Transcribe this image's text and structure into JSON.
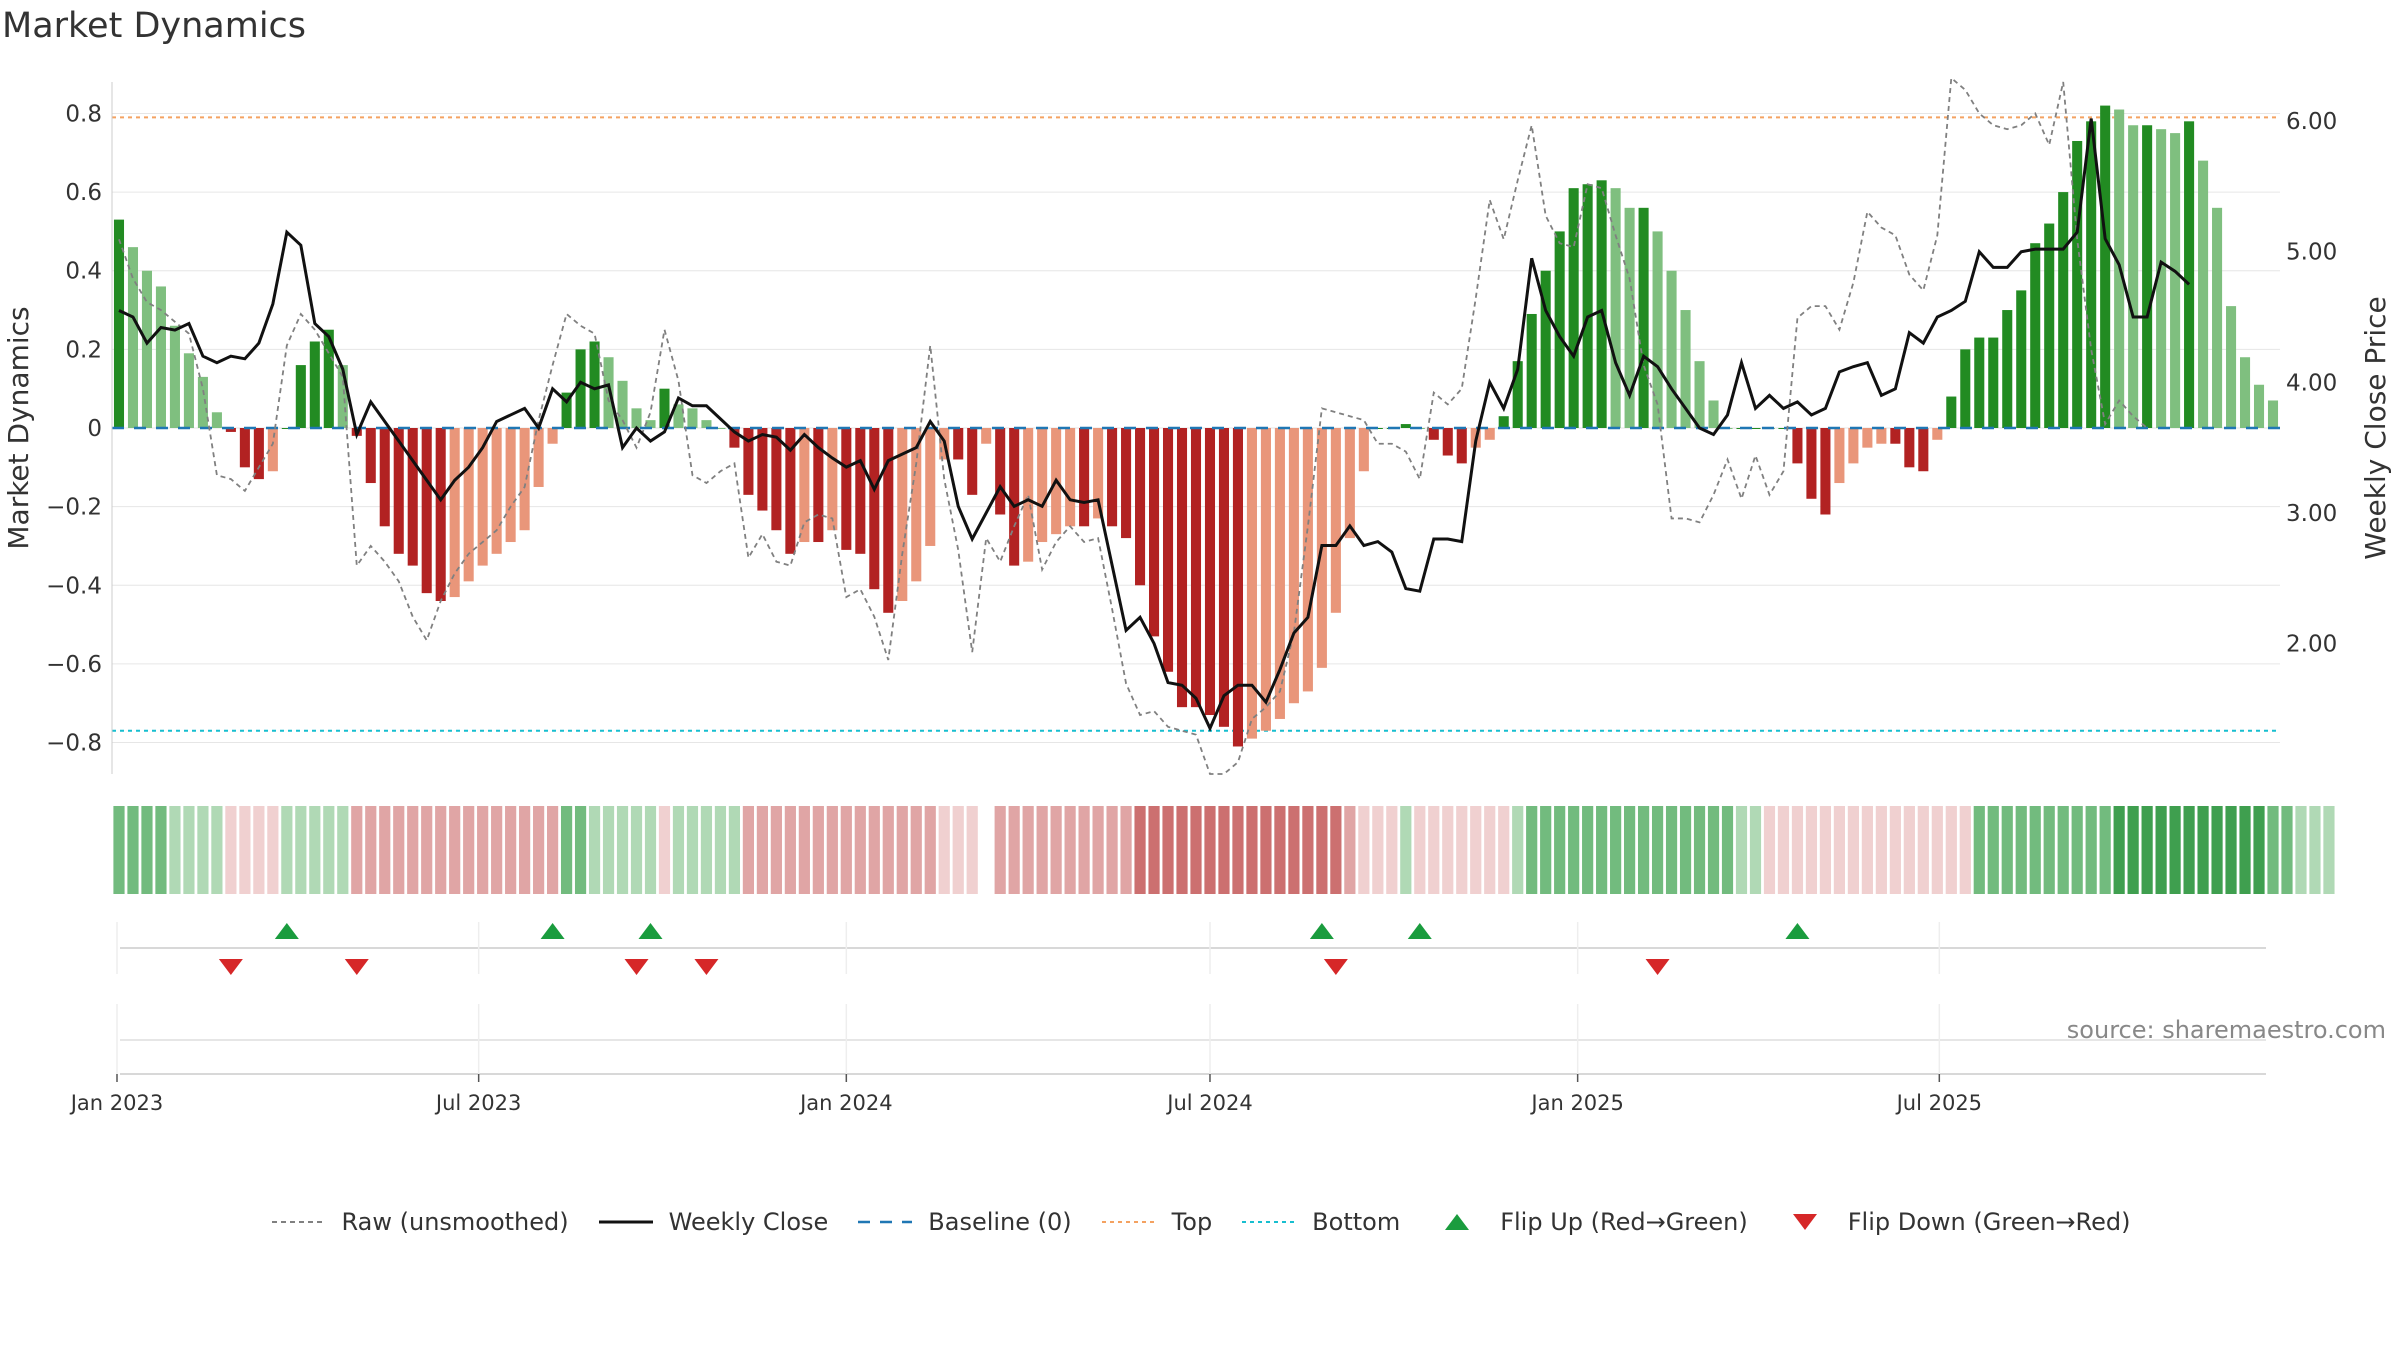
{
  "title": "Market Dynamics",
  "source": "source: sharemaestro.com",
  "colors": {
    "strong_green": "#228B22",
    "light_green": "#7FBF7F",
    "strong_red": "#B22222",
    "light_red": "#E9967A",
    "baseline": "#1f77b4",
    "top": "#f4a261",
    "bottom": "#17becf",
    "raw": "#808080",
    "close": "#111111",
    "flip_up": "#1a9c3e",
    "flip_down": "#d62728"
  },
  "chart_data": {
    "type": "bar",
    "ylabel_left": "Market Dynamics",
    "ylabel_right": "Weekly Close Price",
    "ylim_left": [
      -0.88,
      0.88
    ],
    "ylim_right": [
      1.0,
      6.3
    ],
    "yticks_left": [
      "0.8",
      "0.6",
      "0.4",
      "0.2",
      "0",
      "−0.2",
      "−0.4",
      "−0.6",
      "−0.8"
    ],
    "yticks_left_values": [
      0.8,
      0.6,
      0.4,
      0.2,
      0,
      -0.2,
      -0.4,
      -0.6,
      -0.8
    ],
    "yticks_right": [
      "6.00",
      "5.00",
      "4.00",
      "3.00",
      "2.00"
    ],
    "yticks_right_values": [
      6,
      5,
      4,
      3,
      2
    ],
    "x_start": "2023-01-02",
    "week_step_days": 7,
    "xticks": [
      "Jan 2023",
      "Jul 2023",
      "Jan 2024",
      "Jul 2024",
      "Jan 2025",
      "Jul 2025"
    ],
    "xtick_dates": [
      "2023-01-01",
      "2023-07-01",
      "2024-01-01",
      "2024-07-01",
      "2025-01-01",
      "2025-07-01"
    ],
    "top_line": 0.79,
    "bottom_line": -0.77,
    "legend_position": "bottom-center",
    "series": [
      {
        "name": "Market Dynamics",
        "kind": "bar",
        "values": [
          0.53,
          0.46,
          0.4,
          0.36,
          0.26,
          0.19,
          0.13,
          0.04,
          -0.01,
          -0.1,
          -0.13,
          -0.11,
          0,
          0.16,
          0.22,
          0.25,
          0.16,
          -0.02,
          -0.14,
          -0.25,
          -0.32,
          -0.35,
          -0.42,
          -0.44,
          -0.43,
          -0.39,
          -0.35,
          -0.32,
          -0.29,
          -0.26,
          -0.15,
          -0.04,
          0.09,
          0.2,
          0.22,
          0.18,
          0.12,
          0.05,
          0.02,
          0.1,
          0.06,
          0.05,
          0.02,
          0,
          -0.05,
          -0.17,
          -0.21,
          -0.26,
          -0.32,
          -0.29,
          -0.29,
          -0.26,
          -0.31,
          -0.32,
          -0.41,
          -0.47,
          -0.44,
          -0.39,
          -0.3,
          -0.08,
          -0.08,
          -0.17,
          -0.04,
          -0.22,
          -0.35,
          -0.34,
          -0.29,
          -0.27,
          -0.25,
          -0.25,
          -0.23,
          -0.25,
          -0.28,
          -0.4,
          -0.53,
          -0.62,
          -0.71,
          -0.71,
          -0.73,
          -0.76,
          -0.81,
          -0.79,
          -0.77,
          -0.74,
          -0.7,
          -0.67,
          -0.61,
          -0.47,
          -0.28,
          -0.11,
          0,
          0,
          0.01,
          0,
          -0.03,
          -0.07,
          -0.09,
          -0.05,
          -0.03,
          0.03,
          0.17,
          0.29,
          0.4,
          0.5,
          0.61,
          0.62,
          0.63,
          0.61,
          0.56,
          0.56,
          0.5,
          0.4,
          0.3,
          0.17,
          0.07,
          0,
          0,
          0,
          0,
          0,
          -0.09,
          -0.18,
          -0.22,
          -0.14,
          -0.09,
          -0.05,
          -0.04,
          -0.04,
          -0.1,
          -0.11,
          -0.03,
          0.08,
          0.2,
          0.23,
          0.23,
          0.3,
          0.35,
          0.47,
          0.52,
          0.6,
          0.73,
          0.78,
          0.82,
          0.81,
          0.77,
          0.77,
          0.76,
          0.75,
          0.78,
          0.68,
          0.56,
          0.31,
          0.18,
          0.11,
          0.07
        ]
      },
      {
        "name": "Raw (unsmoothed)",
        "kind": "line",
        "values": [
          0.48,
          0.38,
          0.32,
          0.3,
          0.27,
          0.24,
          0.1,
          -0.12,
          -0.13,
          -0.16,
          -0.1,
          -0.04,
          0.21,
          0.29,
          0.25,
          0.19,
          0.13,
          -0.35,
          -0.3,
          -0.34,
          -0.39,
          -0.48,
          -0.54,
          -0.44,
          -0.37,
          -0.32,
          -0.29,
          -0.26,
          -0.2,
          -0.15,
          0.02,
          0.16,
          0.29,
          0.26,
          0.24,
          0.07,
          0.02,
          -0.05,
          0.04,
          0.25,
          0.12,
          -0.12,
          -0.14,
          -0.11,
          -0.09,
          -0.33,
          -0.27,
          -0.34,
          -0.35,
          -0.24,
          -0.22,
          -0.23,
          -0.43,
          -0.41,
          -0.48,
          -0.59,
          -0.32,
          -0.09,
          0.21,
          -0.13,
          -0.31,
          -0.57,
          -0.28,
          -0.34,
          -0.25,
          -0.17,
          -0.36,
          -0.29,
          -0.25,
          -0.29,
          -0.28,
          -0.46,
          -0.65,
          -0.73,
          -0.72,
          -0.76,
          -0.77,
          -0.78,
          -0.88,
          -0.88,
          -0.85,
          -0.74,
          -0.71,
          -0.67,
          -0.52,
          -0.25,
          0.05,
          0.04,
          0.03,
          0.02,
          -0.04,
          -0.04,
          -0.06,
          -0.13,
          0.09,
          0.06,
          0.1,
          0.33,
          0.58,
          0.48,
          0.63,
          0.77,
          0.54,
          0.47,
          0.46,
          0.62,
          0.61,
          0.49,
          0.38,
          0.16,
          0.06,
          -0.23,
          -0.23,
          -0.24,
          -0.17,
          -0.08,
          -0.18,
          -0.07,
          -0.17,
          -0.11,
          0.28,
          0.31,
          0.31,
          0.25,
          0.37,
          0.55,
          0.51,
          0.49,
          0.39,
          0.35,
          0.49,
          0.89,
          0.86,
          0.8,
          0.77,
          0.76,
          0.77,
          0.8,
          0.72,
          0.88,
          0.48,
          0.2,
          0.01,
          0.07,
          0.03,
          0.0
        ]
      },
      {
        "name": "Weekly Close",
        "kind": "line",
        "axis": "right",
        "values": [
          4.55,
          4.5,
          4.3,
          4.42,
          4.4,
          4.45,
          4.2,
          4.15,
          4.2,
          4.18,
          4.3,
          4.6,
          5.15,
          5.05,
          4.45,
          4.35,
          4.1,
          3.6,
          3.85,
          3.7,
          3.55,
          3.4,
          3.25,
          3.1,
          3.25,
          3.35,
          3.5,
          3.7,
          3.75,
          3.8,
          3.65,
          3.95,
          3.85,
          4.0,
          3.95,
          3.98,
          3.5,
          3.65,
          3.55,
          3.62,
          3.88,
          3.82,
          3.82,
          3.72,
          3.62,
          3.55,
          3.6,
          3.58,
          3.48,
          3.6,
          3.5,
          3.42,
          3.35,
          3.4,
          3.18,
          3.4,
          3.45,
          3.5,
          3.7,
          3.55,
          3.05,
          2.8,
          3.0,
          3.2,
          3.05,
          3.1,
          3.05,
          3.25,
          3.1,
          3.08,
          3.1,
          2.6,
          2.1,
          2.2,
          2.0,
          1.7,
          1.68,
          1.58,
          1.35,
          1.6,
          1.68,
          1.68,
          1.55,
          1.8,
          2.08,
          2.2,
          2.75,
          2.75,
          2.9,
          2.75,
          2.78,
          2.7,
          2.42,
          2.4,
          2.8,
          2.8,
          2.78,
          3.55,
          4.0,
          3.8,
          4.1,
          4.95,
          4.55,
          4.35,
          4.2,
          4.5,
          4.55,
          4.15,
          3.9,
          4.2,
          4.12,
          3.95,
          3.8,
          3.65,
          3.6,
          3.75,
          4.15,
          3.8,
          3.9,
          3.8,
          3.85,
          3.75,
          3.8,
          4.08,
          4.12,
          4.15,
          3.9,
          3.95,
          4.38,
          4.3,
          4.5,
          4.55,
          4.62,
          5.0,
          4.88,
          4.88,
          5.0,
          5.02,
          5.02,
          5.02,
          5.15,
          6.02,
          5.1,
          4.9,
          4.5,
          4.5,
          4.92,
          4.85,
          4.75
        ]
      }
    ],
    "regime_strip_levels": [
      2,
      2,
      2,
      2,
      1,
      1,
      1,
      1,
      -1,
      -1,
      -1,
      -1,
      1,
      1,
      1,
      1,
      1,
      -2,
      -2,
      -2,
      -2,
      -2,
      -2,
      -2,
      -2,
      -2,
      -2,
      -2,
      -2,
      -2,
      -2,
      -2,
      2,
      2,
      1,
      1,
      1,
      1,
      1,
      -1,
      1,
      1,
      1,
      1,
      1,
      -2,
      -2,
      -2,
      -2,
      -2,
      -2,
      -2,
      -2,
      -2,
      -2,
      -2,
      -2,
      -2,
      -2,
      -1,
      -1,
      -1,
      null,
      -2,
      -2,
      -2,
      -2,
      -2,
      -2,
      -2,
      -2,
      -2,
      -2,
      -3,
      -3,
      -3,
      -3,
      -3,
      -3,
      -3,
      -3,
      -3,
      -3,
      -3,
      -3,
      -3,
      -3,
      -3,
      -2,
      -1,
      -1,
      -1,
      1,
      -1,
      -1,
      -1,
      -1,
      -1,
      -1,
      -1,
      1,
      2,
      2,
      2,
      2,
      2,
      2,
      2,
      2,
      2,
      2,
      2,
      2,
      2,
      2,
      2,
      1,
      1,
      -1,
      -1,
      -1,
      -1,
      -1,
      -1,
      -1,
      -1,
      -1,
      -1,
      -1,
      -1,
      -1,
      -1,
      -1,
      2,
      2,
      2,
      2,
      2,
      2,
      2,
      2,
      2,
      2,
      3,
      3,
      3,
      3,
      3,
      3,
      3,
      3,
      3,
      3,
      3,
      2,
      2,
      1,
      1,
      1
    ],
    "flips_up": [
      12,
      31,
      38,
      86,
      93,
      120
    ],
    "flips_down": [
      8,
      17,
      37,
      42,
      87,
      110
    ]
  },
  "legend": [
    {
      "label": "Raw (unsmoothed)",
      "icon": "dashed-gray-line"
    },
    {
      "label": "Weekly Close",
      "icon": "solid-black-line"
    },
    {
      "label": "Baseline (0)",
      "icon": "dashed-blue-line"
    },
    {
      "label": "Top",
      "icon": "dotted-orange-line"
    },
    {
      "label": "Bottom",
      "icon": "dotted-cyan-line"
    },
    {
      "label": "Flip Up (Red→Green)",
      "icon": "green-up-triangle"
    },
    {
      "label": "Flip Down (Green→Red)",
      "icon": "red-down-triangle"
    }
  ]
}
